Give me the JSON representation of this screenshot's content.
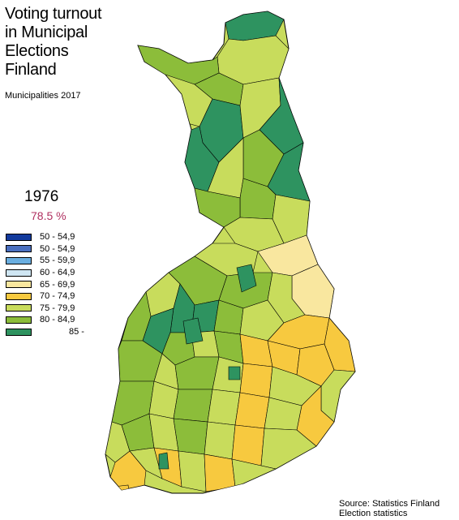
{
  "title_lines": [
    "Voting turnout",
    "in Municipal",
    "Elections",
    "Finland"
  ],
  "subtitle": "Municipalities 2017",
  "year": "1976",
  "turnout": "78.5 %",
  "legend": [
    {
      "label": "50 - 54,9",
      "color": "#123a9c"
    },
    {
      "label": "50 - 54,9",
      "color": "#4a6fc0"
    },
    {
      "label": "55 - 59,9",
      "color": "#6aaee0"
    },
    {
      "label": "60 - 64,9",
      "color": "#cfe6f3"
    },
    {
      "label": "65 - 69,9",
      "color": "#f9e79f"
    },
    {
      "label": "70 - 74,9",
      "color": "#f7c93f"
    },
    {
      "label": "75 - 79,9",
      "color": "#c8dc5c"
    },
    {
      "label": "80 - 84,9",
      "color": "#8cbd3a"
    },
    {
      "label": "85 -",
      "color": "#2e9360"
    }
  ],
  "source_lines": [
    "Source: Statistics Finland",
    "Election statistics"
  ]
}
